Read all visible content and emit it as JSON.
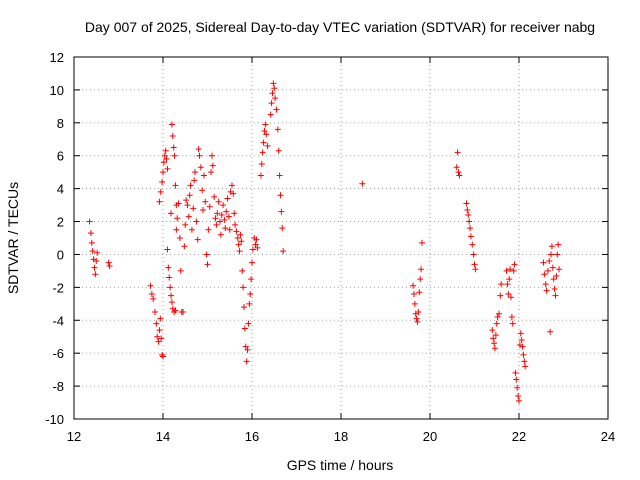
{
  "chart_data": {
    "type": "scatter",
    "title": "Day 007 of 2025, Sidereal Day-to-day VTEC variation (SDTVAR) for receiver nabg",
    "xlabel": "GPS time / hours",
    "ylabel": "SDTVAR / TECUs",
    "xlim": [
      12,
      24
    ],
    "ylim": [
      -10,
      12
    ],
    "xticks": [
      12,
      14,
      16,
      18,
      20,
      22,
      24
    ],
    "yticks": [
      -10,
      -8,
      -6,
      -4,
      -2,
      0,
      2,
      4,
      6,
      8,
      10,
      12
    ],
    "xtick_labels": [
      "12",
      "14",
      "16",
      "18",
      "20",
      "22",
      "24"
    ],
    "ytick_labels": [
      "-10",
      "-8",
      "-6",
      "-4",
      "-2",
      "0",
      "2",
      "4",
      "6",
      "8",
      "10",
      "12"
    ],
    "grid": true,
    "marker": "+",
    "marker_color": "#ff0000",
    "series": [
      {
        "name": "SDTVAR",
        "points": [
          [
            12.35,
            2.0
          ],
          [
            12.38,
            1.3
          ],
          [
            12.4,
            0.7
          ],
          [
            12.42,
            0.2
          ],
          [
            12.44,
            -0.3
          ],
          [
            12.46,
            -0.8
          ],
          [
            12.48,
            -1.2
          ],
          [
            12.5,
            -0.4
          ],
          [
            12.52,
            0.1
          ],
          [
            12.78,
            -0.5
          ],
          [
            12.8,
            -0.7
          ],
          [
            13.72,
            -1.9
          ],
          [
            13.75,
            -2.4
          ],
          [
            13.78,
            -2.7
          ],
          [
            13.82,
            -3.5
          ],
          [
            13.85,
            -4.2
          ],
          [
            13.87,
            -5.0
          ],
          [
            13.9,
            -5.3
          ],
          [
            13.92,
            -4.6
          ],
          [
            13.94,
            -3.9
          ],
          [
            13.96,
            -5.1
          ],
          [
            13.98,
            -6.1
          ],
          [
            14.0,
            -6.2
          ],
          [
            13.92,
            3.2
          ],
          [
            13.95,
            3.8
          ],
          [
            13.98,
            4.4
          ],
          [
            14.0,
            5.0
          ],
          [
            14.02,
            5.6
          ],
          [
            14.04,
            6.0
          ],
          [
            14.06,
            6.3
          ],
          [
            14.08,
            5.8
          ],
          [
            14.1,
            5.2
          ],
          [
            14.1,
            0.3
          ],
          [
            14.12,
            -0.8
          ],
          [
            14.14,
            -1.4
          ],
          [
            14.16,
            -2.0
          ],
          [
            14.18,
            -2.5
          ],
          [
            14.2,
            -2.9
          ],
          [
            14.22,
            -3.3
          ],
          [
            14.25,
            -3.5
          ],
          [
            14.28,
            -3.4
          ],
          [
            14.3,
            1.5
          ],
          [
            14.18,
            2.5
          ],
          [
            14.2,
            7.9
          ],
          [
            14.22,
            7.2
          ],
          [
            14.24,
            6.5
          ],
          [
            14.26,
            6.0
          ],
          [
            14.28,
            4.2
          ],
          [
            14.3,
            3.0
          ],
          [
            14.32,
            2.2
          ],
          [
            14.35,
            3.1
          ],
          [
            14.38,
            1.0
          ],
          [
            14.4,
            -1.0
          ],
          [
            14.42,
            -3.5
          ],
          [
            14.45,
            -3.5
          ],
          [
            14.48,
            0.5
          ],
          [
            14.5,
            1.8
          ],
          [
            14.52,
            3.3
          ],
          [
            14.55,
            3.0
          ],
          [
            14.58,
            2.3
          ],
          [
            14.6,
            3.6
          ],
          [
            14.62,
            4.2
          ],
          [
            14.65,
            1.5
          ],
          [
            14.68,
            2.8
          ],
          [
            14.7,
            4.5
          ],
          [
            14.72,
            5.0
          ],
          [
            14.75,
            2.0
          ],
          [
            14.78,
            0.9
          ],
          [
            14.8,
            6.4
          ],
          [
            14.82,
            6.0
          ],
          [
            14.85,
            5.3
          ],
          [
            14.88,
            3.9
          ],
          [
            14.9,
            2.7
          ],
          [
            14.92,
            4.8
          ],
          [
            14.95,
            3.2
          ],
          [
            14.98,
            0.0
          ],
          [
            15.0,
            -0.6
          ],
          [
            15.02,
            1.5
          ],
          [
            15.05,
            2.9
          ],
          [
            15.08,
            5.0
          ],
          [
            15.1,
            6.0
          ],
          [
            15.12,
            5.4
          ],
          [
            15.15,
            3.5
          ],
          [
            15.18,
            2.2
          ],
          [
            15.2,
            1.8
          ],
          [
            15.22,
            2.5
          ],
          [
            15.25,
            3.2
          ],
          [
            15.28,
            2.0
          ],
          [
            15.3,
            1.2
          ],
          [
            15.32,
            2.4
          ],
          [
            15.35,
            3.0
          ],
          [
            15.38,
            2.1
          ],
          [
            15.4,
            1.6
          ],
          [
            15.42,
            2.6
          ],
          [
            15.45,
            3.4
          ],
          [
            15.48,
            2.3
          ],
          [
            15.5,
            1.5
          ],
          [
            15.52,
            3.8
          ],
          [
            15.55,
            4.2
          ],
          [
            15.58,
            3.7
          ],
          [
            15.6,
            2.5
          ],
          [
            15.62,
            1.8
          ],
          [
            15.65,
            1.4
          ],
          [
            15.68,
            1.0
          ],
          [
            15.7,
            0.6
          ],
          [
            15.72,
            0.2
          ],
          [
            15.74,
            1.2
          ],
          [
            15.76,
            0.8
          ],
          [
            15.78,
            -1.0
          ],
          [
            15.8,
            -2.0
          ],
          [
            15.82,
            -3.2
          ],
          [
            15.84,
            -4.5
          ],
          [
            15.86,
            -5.6
          ],
          [
            15.88,
            -6.5
          ],
          [
            15.9,
            -5.8
          ],
          [
            15.92,
            -4.2
          ],
          [
            15.94,
            -3.0
          ],
          [
            15.96,
            -2.4
          ],
          [
            15.98,
            -1.5
          ],
          [
            16.0,
            -0.5
          ],
          [
            16.02,
            0.3
          ],
          [
            16.05,
            1.0
          ],
          [
            16.08,
            0.6
          ],
          [
            16.1,
            0.9
          ],
          [
            16.12,
            0.4
          ],
          [
            16.2,
            4.8
          ],
          [
            16.22,
            5.5
          ],
          [
            16.24,
            6.2
          ],
          [
            16.26,
            6.8
          ],
          [
            16.28,
            7.5
          ],
          [
            16.3,
            7.9
          ],
          [
            16.32,
            7.3
          ],
          [
            16.35,
            6.6
          ],
          [
            16.42,
            8.5
          ],
          [
            16.44,
            9.2
          ],
          [
            16.46,
            9.8
          ],
          [
            16.48,
            10.4
          ],
          [
            16.5,
            10.1
          ],
          [
            16.52,
            9.5
          ],
          [
            16.55,
            8.8
          ],
          [
            16.58,
            7.6
          ],
          [
            16.6,
            6.3
          ],
          [
            16.62,
            4.8
          ],
          [
            16.64,
            3.6
          ],
          [
            16.66,
            2.6
          ],
          [
            16.68,
            1.6
          ],
          [
            16.7,
            0.2
          ],
          [
            18.48,
            4.3
          ],
          [
            19.62,
            -1.9
          ],
          [
            19.64,
            -2.4
          ],
          [
            19.66,
            -3.0
          ],
          [
            19.68,
            -3.6
          ],
          [
            19.7,
            -3.9
          ],
          [
            19.72,
            -4.1
          ],
          [
            19.74,
            -3.5
          ],
          [
            19.76,
            -2.3
          ],
          [
            19.78,
            -1.5
          ],
          [
            19.8,
            -0.9
          ],
          [
            19.82,
            0.7
          ],
          [
            20.6,
            5.3
          ],
          [
            20.62,
            6.2
          ],
          [
            20.64,
            5.0
          ],
          [
            20.66,
            4.8
          ],
          [
            20.82,
            3.1
          ],
          [
            20.84,
            2.7
          ],
          [
            20.86,
            2.4
          ],
          [
            20.88,
            2.0
          ],
          [
            20.9,
            1.6
          ],
          [
            20.92,
            1.1
          ],
          [
            20.95,
            0.6
          ],
          [
            20.98,
            0.0
          ],
          [
            21.0,
            -0.6
          ],
          [
            21.02,
            -0.9
          ],
          [
            21.4,
            -4.6
          ],
          [
            21.42,
            -5.1
          ],
          [
            21.44,
            -5.4
          ],
          [
            21.46,
            -5.7
          ],
          [
            21.48,
            -4.9
          ],
          [
            21.5,
            -4.2
          ],
          [
            21.52,
            -3.8
          ],
          [
            21.55,
            -3.6
          ],
          [
            21.58,
            -2.5
          ],
          [
            21.6,
            -1.8
          ],
          [
            21.72,
            -1.0
          ],
          [
            21.74,
            -1.8
          ],
          [
            21.76,
            -2.4
          ],
          [
            21.78,
            -1.5
          ],
          [
            21.8,
            -0.9
          ],
          [
            21.82,
            -2.6
          ],
          [
            21.84,
            -3.8
          ],
          [
            21.86,
            -4.2
          ],
          [
            21.88,
            -1.0
          ],
          [
            21.9,
            -0.6
          ],
          [
            21.92,
            -7.2
          ],
          [
            21.94,
            -7.6
          ],
          [
            21.96,
            -8.1
          ],
          [
            21.98,
            -8.6
          ],
          [
            22.0,
            -8.9
          ],
          [
            22.02,
            -5.5
          ],
          [
            22.04,
            -4.8
          ],
          [
            22.06,
            -5.2
          ],
          [
            22.08,
            -5.6
          ],
          [
            22.1,
            -6.1
          ],
          [
            22.12,
            -6.5
          ],
          [
            22.14,
            -6.8
          ],
          [
            22.55,
            -0.5
          ],
          [
            22.57,
            -1.2
          ],
          [
            22.6,
            -1.8
          ],
          [
            22.62,
            -2.2
          ],
          [
            22.65,
            -1.0
          ],
          [
            22.68,
            -0.4
          ],
          [
            22.7,
            -4.7
          ],
          [
            22.72,
            0.0
          ],
          [
            22.74,
            0.5
          ],
          [
            22.76,
            -0.8
          ],
          [
            22.78,
            -1.5
          ],
          [
            22.8,
            -2.1
          ],
          [
            22.82,
            -2.5
          ],
          [
            22.84,
            -1.3
          ],
          [
            22.86,
            0.0
          ],
          [
            22.88,
            0.6
          ],
          [
            22.9,
            -0.9
          ]
        ]
      }
    ]
  }
}
